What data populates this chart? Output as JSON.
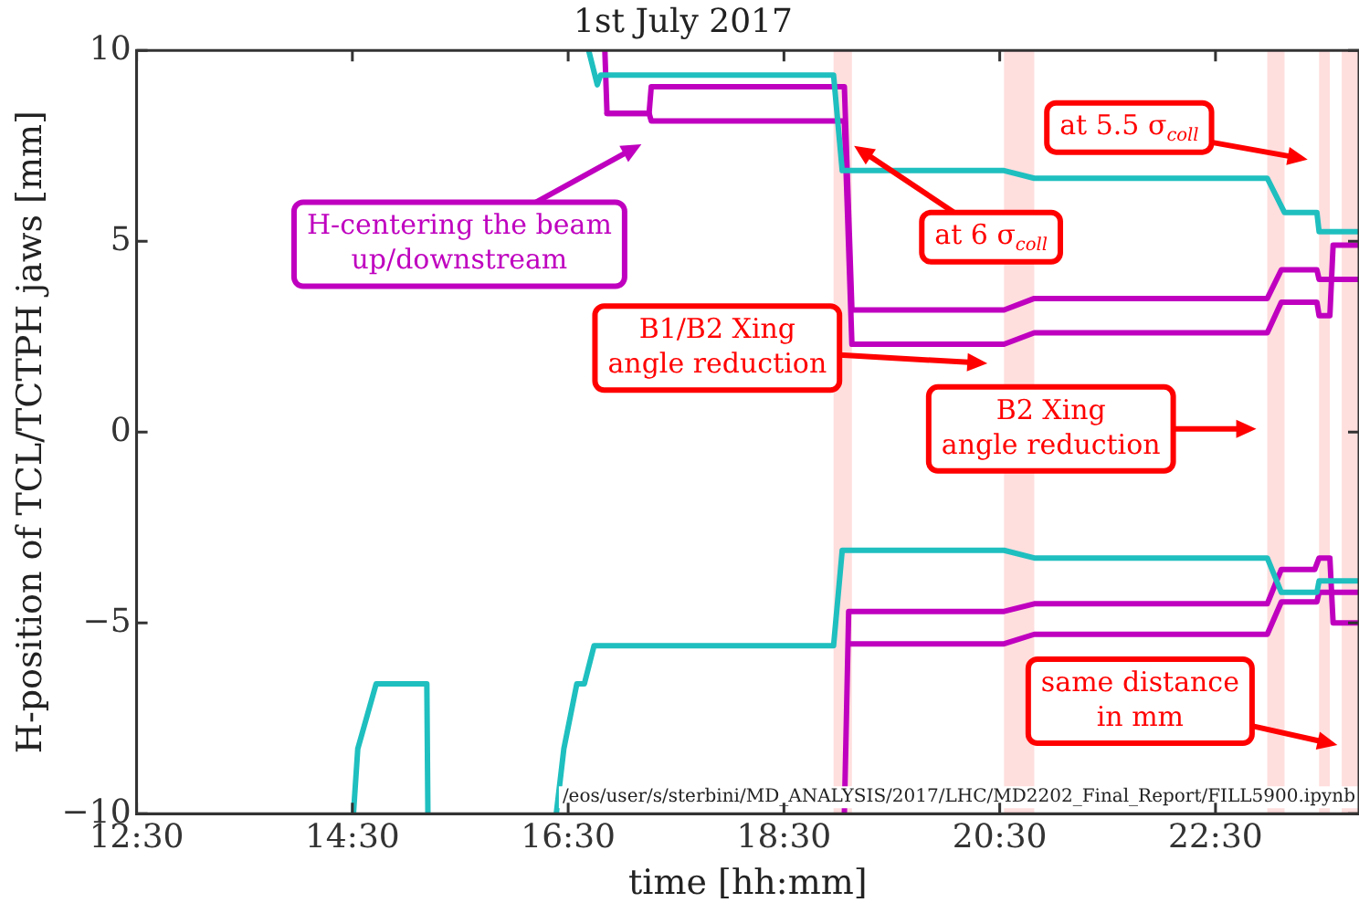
{
  "chart_data": {
    "type": "line",
    "title": "1st July 2017",
    "xlabel": "time [hh:mm]",
    "ylabel": "H-position of TCL/TCTPH jaws [mm]",
    "xlim": [
      12.5,
      23.83
    ],
    "xticks": [
      {
        "value": 12.5,
        "label": "12:30"
      },
      {
        "value": 14.5,
        "label": "14:30"
      },
      {
        "value": 16.5,
        "label": "16:30"
      },
      {
        "value": 18.5,
        "label": "18:30"
      },
      {
        "value": 20.5,
        "label": "20:30"
      },
      {
        "value": 22.5,
        "label": "22:30"
      }
    ],
    "ylim": [
      -10,
      10
    ],
    "yticks": [
      {
        "value": -10,
        "label": "−10"
      },
      {
        "value": -5,
        "label": "−5"
      },
      0,
      5,
      10
    ],
    "grid": false,
    "legend": false,
    "marker": "none",
    "line_style": "solid",
    "series": [
      {
        "color": "#1fbfbf",
        "x": [
          16.69,
          16.77,
          16.8,
          18.96,
          19.04,
          20.54,
          20.82,
          22.98,
          23.14,
          23.44,
          23.46,
          23.83
        ],
        "values": [
          10,
          9.1,
          9.35,
          9.35,
          6.85,
          6.85,
          6.65,
          6.65,
          5.75,
          5.75,
          5.25,
          5.25
        ]
      },
      {
        "color": "#1fbfbf",
        "x": [
          14.51,
          14.55,
          14.72,
          15.19,
          15.2,
          15.8,
          16.39,
          16.46,
          16.58,
          16.65,
          16.74,
          18.96,
          19.04,
          20.54,
          20.82,
          22.98,
          23.11,
          23.44,
          23.46,
          23.83
        ],
        "values": [
          -10,
          -8.3,
          -6.6,
          -6.6,
          -10,
          null,
          -10,
          -8.3,
          -6.6,
          -6.6,
          -5.6,
          -5.6,
          -3.1,
          -3.1,
          -3.3,
          -3.3,
          -4.2,
          -4.2,
          -3.9,
          -3.9
        ]
      },
      {
        "color": "#bf00bf",
        "x": [
          16.84,
          16.86,
          17.25,
          17.27,
          19.06,
          19.13,
          20.54,
          20.82,
          22.98,
          23.11,
          23.44,
          23.46,
          23.83
        ],
        "values": [
          10,
          8.35,
          8.35,
          9.05,
          9.05,
          3.2,
          3.2,
          3.5,
          3.5,
          4.25,
          4.25,
          4.0,
          4.0
        ]
      },
      {
        "color": "#bf00bf",
        "x": [
          16.86,
          17.25,
          17.27,
          19.06,
          19.13,
          20.54,
          20.82,
          22.98,
          23.11,
          23.44,
          23.46,
          23.56,
          23.59,
          23.83
        ],
        "values": [
          8.35,
          8.35,
          8.15,
          8.15,
          2.3,
          2.3,
          2.6,
          2.6,
          3.4,
          3.4,
          3.05,
          3.05,
          4.9,
          4.9
        ]
      },
      {
        "color": "#bf00bf",
        "x": [
          19.06,
          19.1,
          20.54,
          20.82,
          22.98,
          23.11,
          23.42,
          23.46,
          23.56,
          23.59,
          23.83
        ],
        "values": [
          -10,
          -4.7,
          -4.7,
          -4.5,
          -4.5,
          -3.6,
          -3.6,
          -3.3,
          -3.3,
          -5.0,
          -5.0
        ]
      },
      {
        "color": "#bf00bf",
        "x": [
          19.1,
          20.54,
          20.82,
          22.98,
          23.11,
          23.44,
          23.46,
          23.83
        ],
        "values": [
          -5.55,
          -5.55,
          -5.3,
          -5.3,
          -4.45,
          -4.45,
          -4.2,
          -4.2
        ]
      }
    ],
    "bands": [
      {
        "axis": "x",
        "from": 18.96,
        "to": 19.13,
        "color": "#ffdede"
      },
      {
        "axis": "x",
        "from": 20.54,
        "to": 20.82,
        "color": "#ffdede"
      },
      {
        "axis": "x",
        "from": 22.98,
        "to": 23.14,
        "color": "#ffdede"
      },
      {
        "axis": "x",
        "from": 23.46,
        "to": 23.56,
        "color": "#ffdede"
      },
      {
        "axis": "x",
        "from": 23.67,
        "to": 23.83,
        "color": "#ffdede"
      }
    ],
    "annotations": [
      "H-centering the beam\nup/downstream",
      {
        "text": "at 6 σ$_{coll}$",
        "x": 19.15,
        "y": 7.5
      },
      "B1/B2 Xing\nangle reduction",
      "at 5.5 σ$_{coll}$",
      "B2 Xing\nangle reduction",
      {
        "text": "same distance\nin mm",
        "x": 23.63,
        "y": -8.2
      },
      "/eos/user/s/sterbini/MD_ANALYSIS/2017/LHC/MD2202_Final_Report/FILL5900.ipynb"
    ]
  }
}
